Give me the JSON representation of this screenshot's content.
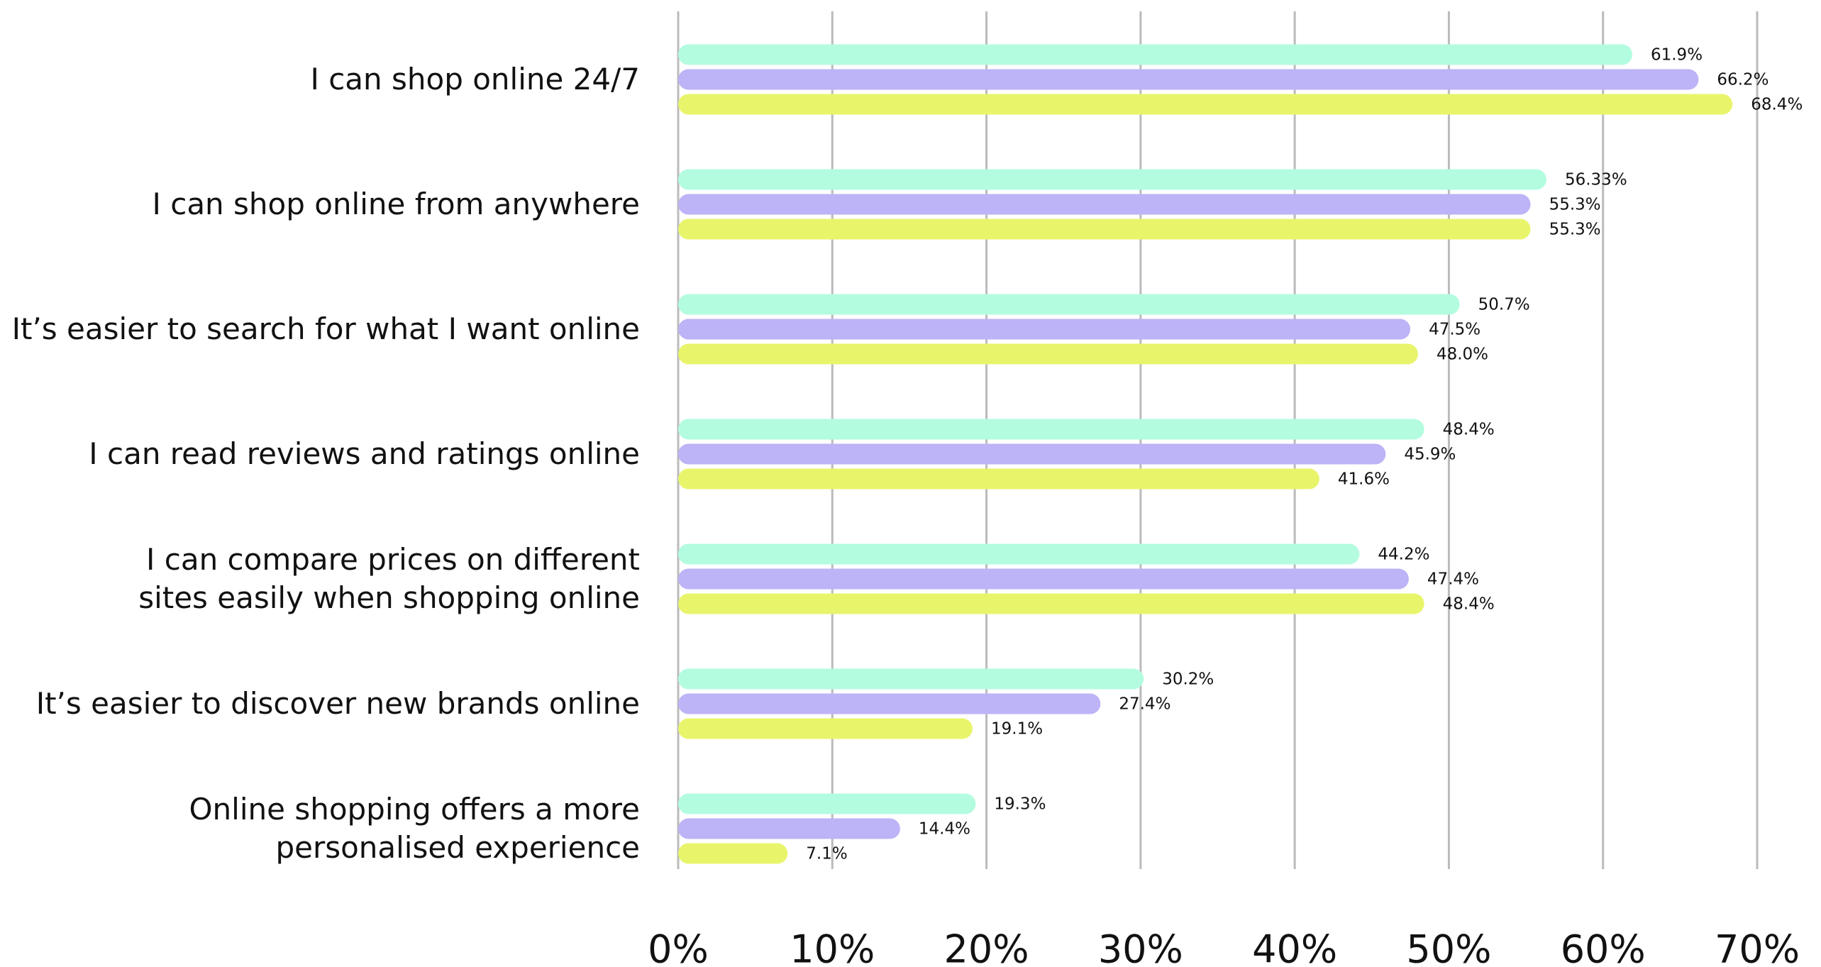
{
  "chart_data": {
    "type": "bar",
    "orientation": "horizontal",
    "categories": [
      "I can shop online 24/7",
      "I can shop online from anywhere",
      "It’s easier to search for what I want online",
      "I can read reviews and ratings online",
      "I can compare prices on different\nsites easily when shopping online",
      "It’s easier to discover new brands online",
      "Online shopping offers a more\npersonalised experience"
    ],
    "series": [
      {
        "color": "#b3fce0",
        "values": [
          61.9,
          56.33,
          50.7,
          48.4,
          44.2,
          30.2,
          19.3
        ],
        "value_labels": [
          "61.9%",
          "56.33%",
          "50.7%",
          "48.4%",
          "44.2%",
          "30.2%",
          "19.3%"
        ]
      },
      {
        "color": "#bdb3f7",
        "values": [
          66.2,
          55.3,
          47.5,
          45.9,
          47.4,
          27.4,
          14.4
        ],
        "value_labels": [
          "66.2%",
          "55.3%",
          "47.5%",
          "45.9%",
          "47.4%",
          "27.4%",
          "14.4%"
        ]
      },
      {
        "color": "#e8f56b",
        "values": [
          68.4,
          55.3,
          48.0,
          41.6,
          48.4,
          19.1,
          7.1
        ],
        "value_labels": [
          "68.4%",
          "55.3%",
          "48.0%",
          "41.6%",
          "48.4%",
          "19.1%",
          "7.1%"
        ]
      }
    ],
    "xlim": [
      0,
      70
    ],
    "xticks": [
      {
        "value": 0,
        "label": "0%"
      },
      {
        "value": 10,
        "label": "10%"
      },
      {
        "value": 20,
        "label": "20%"
      },
      {
        "value": 30,
        "label": "30%"
      },
      {
        "value": 40,
        "label": "40%"
      },
      {
        "value": 50,
        "label": "50%"
      },
      {
        "value": 60,
        "label": "60%"
      },
      {
        "value": 70,
        "label": "70%"
      }
    ],
    "grid": true
  }
}
